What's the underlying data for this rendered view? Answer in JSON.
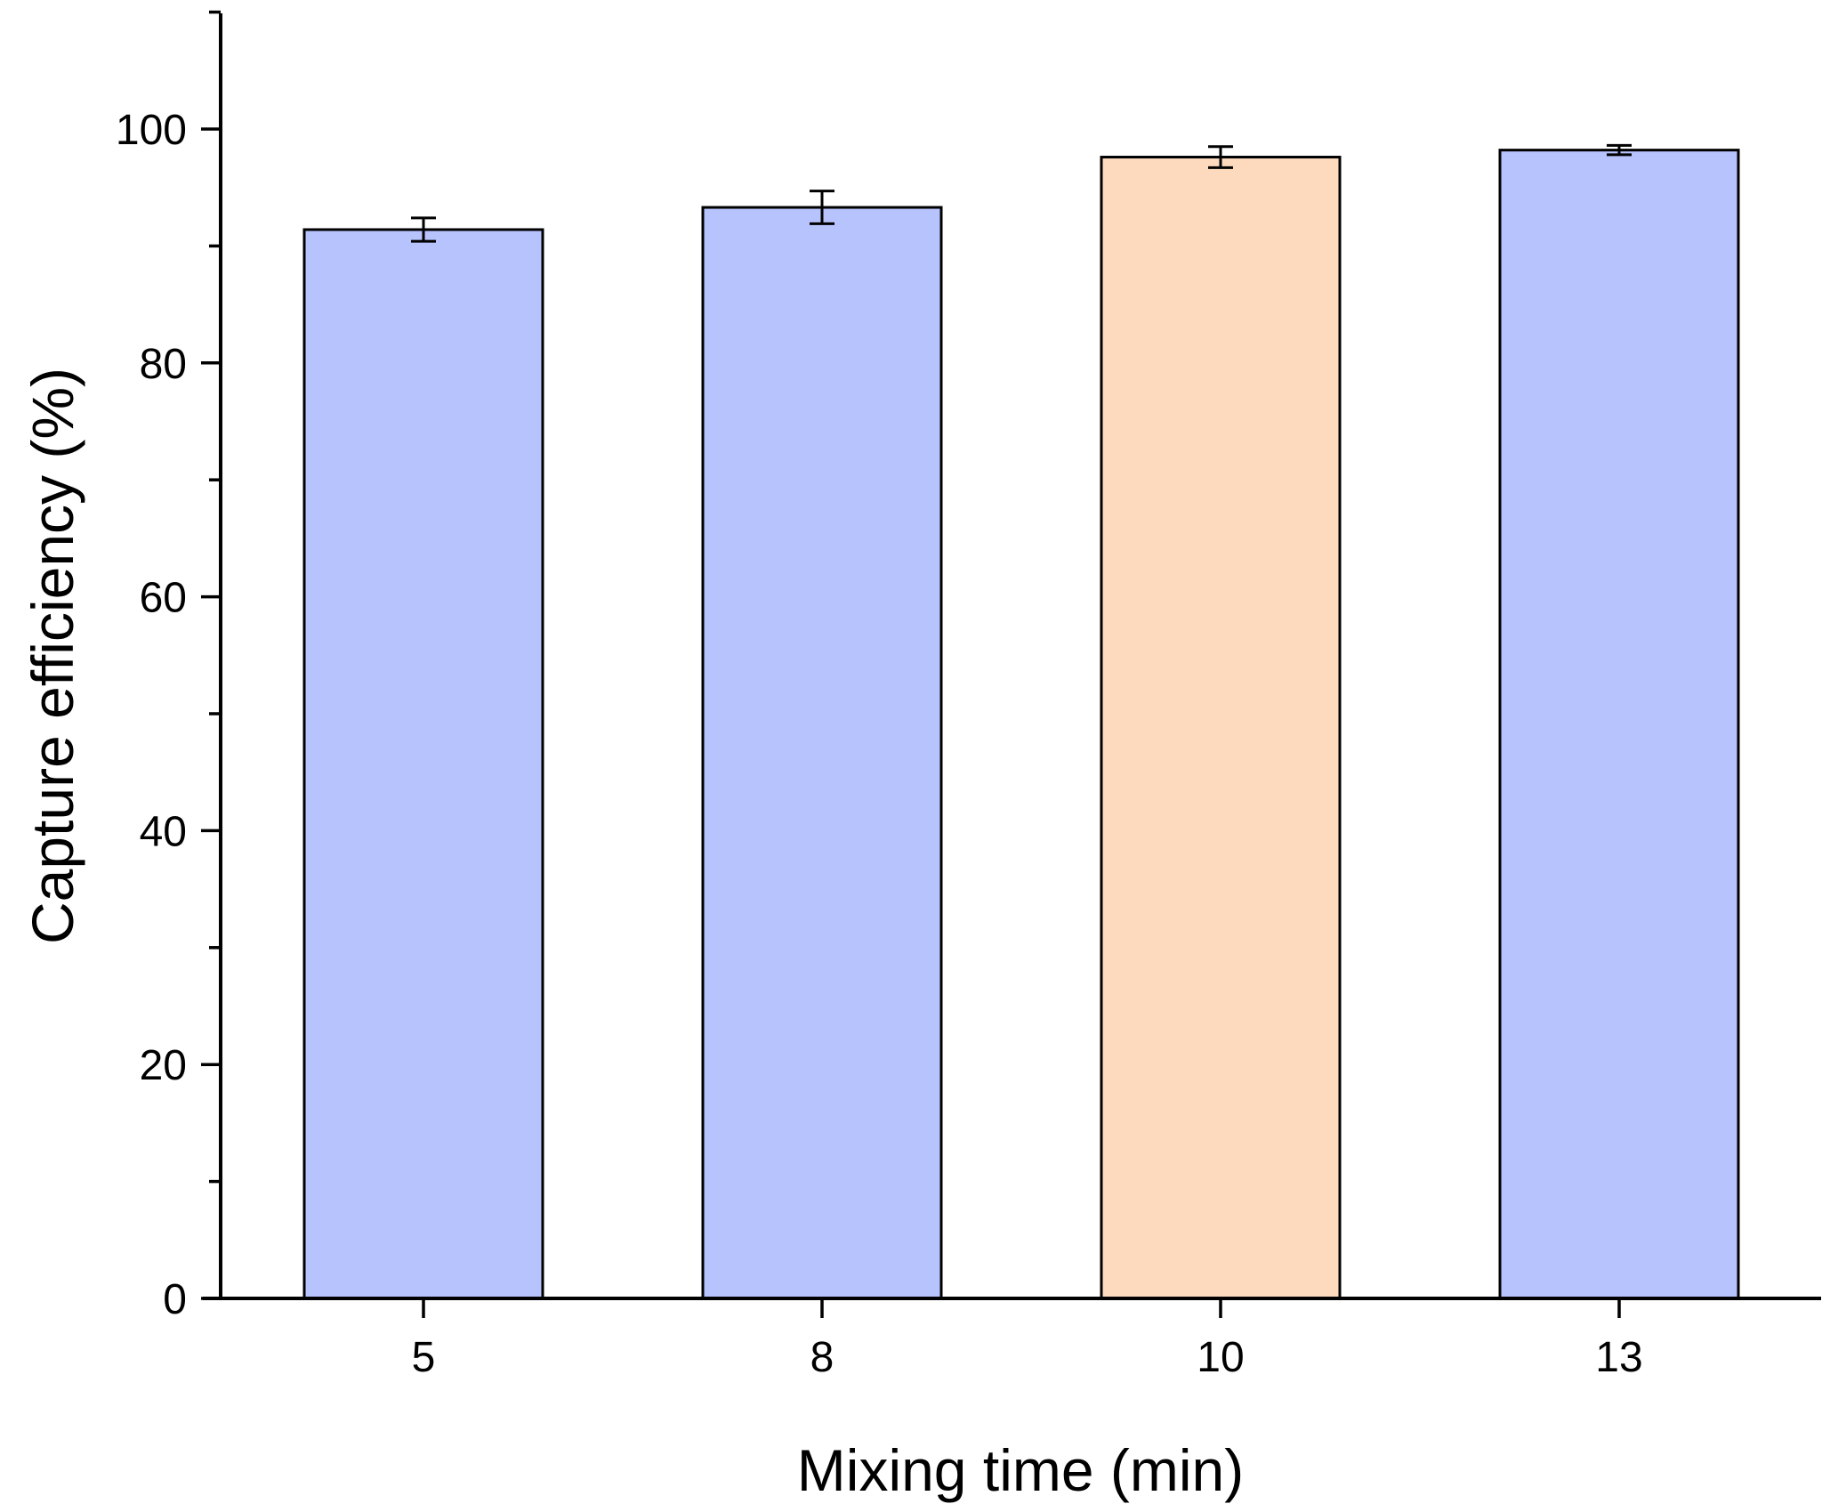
{
  "chart_data": {
    "type": "bar",
    "categories": [
      "5",
      "8",
      "10",
      "13"
    ],
    "values": [
      91.4,
      93.3,
      97.6,
      98.2
    ],
    "errors": [
      1.0,
      1.4,
      0.9,
      0.4
    ],
    "bar_colors": [
      "#b7c3fd",
      "#b7c3fd",
      "#fddabd",
      "#b7c3fd"
    ],
    "xlabel": "Mixing time (min)",
    "ylabel": "Capture efficiency (%)",
    "ylim": [
      0,
      110
    ],
    "yticks": [
      0,
      20,
      40,
      60,
      80,
      100
    ],
    "ytick_labels": [
      "0",
      "20",
      "40",
      "60",
      "80",
      "100"
    ],
    "y_minor_step": 10,
    "grid": false,
    "legend": false
  }
}
